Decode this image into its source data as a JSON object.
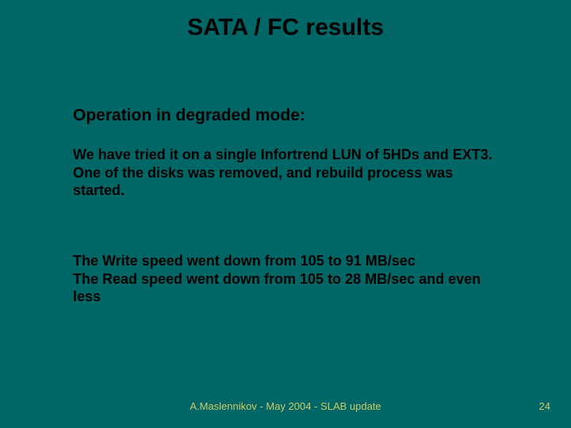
{
  "colors": {
    "background": "#006666",
    "text": "#000000",
    "footer": "#cccc66"
  },
  "typography": {
    "family": "Arial, Helvetica, sans-serif",
    "title_fontsize": 30,
    "subtitle_fontsize": 21,
    "body_fontsize": 18,
    "footer_fontsize": 13,
    "weight": "bold"
  },
  "title": "SATA / FC results",
  "subtitle": "Operation in degraded mode:",
  "para1_line1": "We have tried it on a single Infortrend LUN of 5HDs and EXT3.",
  "para1_line2": "One of the disks was removed,  and rebuild process was started.",
  "para2_line1": "The Write speed went down from  105  to  91 MB/sec",
  "para2_line2": "The Read speed went down from  105  to  28 MB/sec and even less",
  "footer": "A.Maslennikov - May 2004 - SLAB update",
  "page_number": "24"
}
